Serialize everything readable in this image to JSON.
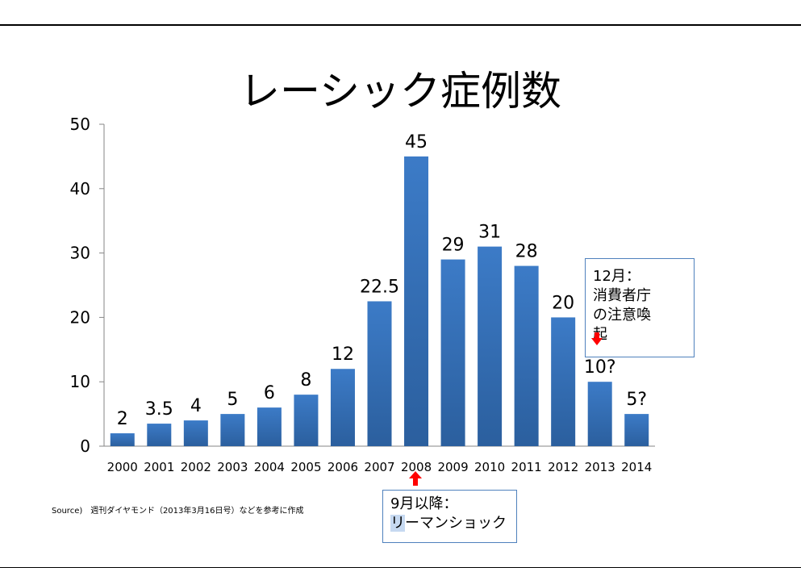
{
  "title": "レーシック症例数",
  "source": "Source)　週刊ダイヤモンド（2013年3月16日号）などを参考に作成",
  "colors": {
    "bar": "#3c7bc7",
    "bar_dark": "#2b5f9e",
    "arrow": "#ff0000",
    "callout_border": "#4f81bd"
  },
  "annotations": {
    "dec": {
      "line1": "12月：",
      "line2": "消費者庁",
      "line3": "の注意喚",
      "line4": "起"
    },
    "lehman": {
      "line1": "9月以降：",
      "line2_hl": "リ",
      "line2_rest": "ーマンショック"
    }
  },
  "chart_data": {
    "type": "bar",
    "categories": [
      "2000",
      "2001",
      "2002",
      "2003",
      "2004",
      "2005",
      "2006",
      "2007",
      "2008",
      "2009",
      "2010",
      "2011",
      "2012",
      "2013",
      "2014"
    ],
    "values": [
      2,
      3.5,
      4,
      5,
      6,
      8,
      12,
      22.5,
      45,
      29,
      31,
      28,
      20,
      10,
      5
    ],
    "data_labels": [
      "2",
      "3.5",
      "4",
      "5",
      "6",
      "8",
      "12",
      "22.5",
      "45",
      "29",
      "31",
      "28",
      "20",
      "10?",
      "5?"
    ],
    "title": "レーシック症例数",
    "xlabel": "",
    "ylabel": "",
    "ylim": [
      0,
      50
    ],
    "yticks": [
      0,
      10,
      20,
      30,
      40,
      50
    ],
    "grid": false,
    "legend": "none"
  }
}
